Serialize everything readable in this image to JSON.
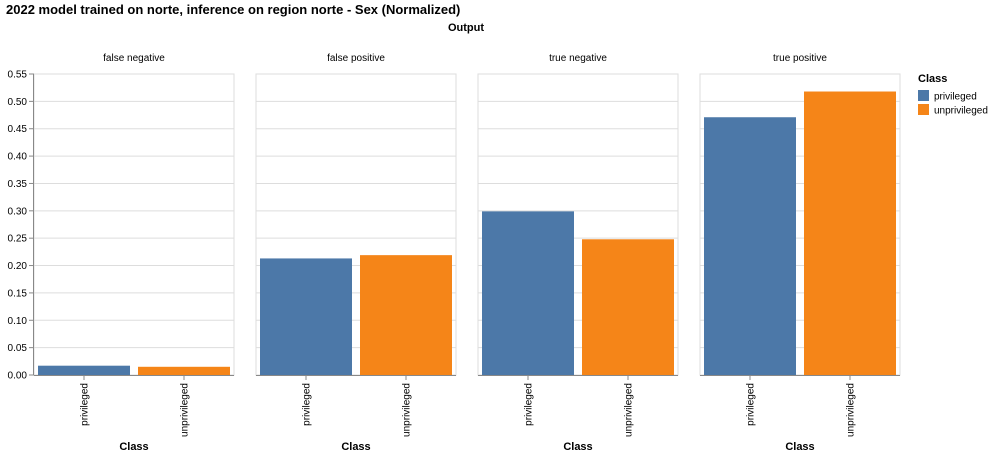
{
  "chart_data": {
    "type": "bar",
    "title": "2022 model trained on norte, inference on region norte - Sex (Normalized)",
    "column_title": "Output",
    "facets": [
      "false negative",
      "false positive",
      "true negative",
      "true positive"
    ],
    "categories": [
      "privileged",
      "unprivileged"
    ],
    "values": [
      [
        0.017,
        0.015
      ],
      [
        0.213,
        0.219
      ],
      [
        0.299,
        0.248
      ],
      [
        0.471,
        0.518
      ]
    ],
    "xlabel": "Class",
    "ylabel": "",
    "ylim": [
      0,
      0.55
    ],
    "yticks": [
      0.0,
      0.05,
      0.1,
      0.15,
      0.2,
      0.25,
      0.3,
      0.35,
      0.4,
      0.45,
      0.5,
      0.55
    ],
    "grid": true,
    "legend": {
      "title": "Class",
      "position": "right",
      "entries": [
        "privileged",
        "unprivileged"
      ]
    },
    "colors": {
      "privileged": "#4c78a8",
      "unprivileged": "#f58518"
    }
  }
}
